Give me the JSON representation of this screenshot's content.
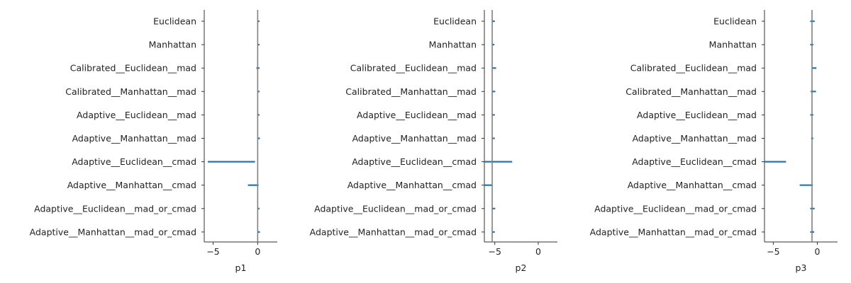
{
  "chart_data": [
    {
      "type": "interval",
      "xlabel": "p1",
      "xlim": [
        -6,
        2.2
      ],
      "xticks": [
        -5,
        0
      ],
      "reference_line": 0.0,
      "bar_color": "#1f77b4",
      "reference_color": "#808080",
      "categories": [
        "Euclidean",
        "Manhattan",
        "Calibrated__Euclidean__mad",
        "Calibrated__Manhattan__mad",
        "Adaptive__Euclidean__mad",
        "Adaptive__Manhattan__mad",
        "Adaptive__Euclidean__cmad",
        "Adaptive__Manhattan__cmad",
        "Adaptive__Euclidean__mad_or_cmad",
        "Adaptive__Manhattan__mad_or_cmad"
      ],
      "intervals": [
        [
          0.0,
          0.2
        ],
        [
          0.0,
          0.2
        ],
        [
          -0.15,
          0.2
        ],
        [
          0.0,
          0.2
        ],
        [
          0.0,
          0.2
        ],
        [
          0.0,
          0.25
        ],
        [
          -5.6,
          -0.3
        ],
        [
          -1.1,
          0.1
        ],
        [
          0.0,
          0.2
        ],
        [
          0.0,
          0.25
        ]
      ]
    },
    {
      "type": "interval",
      "xlabel": "p2",
      "xlim": [
        -6.2,
        2.2
      ],
      "xticks": [
        -5,
        0
      ],
      "reference_line": -5.3,
      "bar_color": "#1f77b4",
      "reference_color": "#808080",
      "categories": [
        "Euclidean",
        "Manhattan",
        "Calibrated__Euclidean__mad",
        "Calibrated__Manhattan__mad",
        "Adaptive__Euclidean__mad",
        "Adaptive__Manhattan__mad",
        "Adaptive__Euclidean__cmad",
        "Adaptive__Manhattan__cmad",
        "Adaptive__Euclidean__mad_or_cmad",
        "Adaptive__Manhattan__mad_or_cmad"
      ],
      "intervals": [
        [
          -5.3,
          -5.0
        ],
        [
          -5.3,
          -5.05
        ],
        [
          -5.3,
          -4.85
        ],
        [
          -5.3,
          -4.95
        ],
        [
          -5.3,
          -5.0
        ],
        [
          -5.3,
          -5.0
        ],
        [
          -6.2,
          -3.0
        ],
        [
          -6.2,
          -5.3
        ],
        [
          -5.3,
          -4.95
        ],
        [
          -5.3,
          -5.0
        ]
      ]
    },
    {
      "type": "interval",
      "xlabel": "p3",
      "xlim": [
        -6.0,
        2.3
      ],
      "xticks": [
        -5,
        0
      ],
      "reference_line": -0.6,
      "bar_color": "#1f77b4",
      "reference_color": "#808080",
      "categories": [
        "Euclidean",
        "Manhattan",
        "Calibrated__Euclidean__mad",
        "Calibrated__Manhattan__mad",
        "Adaptive__Euclidean__mad",
        "Adaptive__Manhattan__mad",
        "Adaptive__Euclidean__cmad",
        "Adaptive__Manhattan__cmad",
        "Adaptive__Euclidean__mad_or_cmad",
        "Adaptive__Manhattan__mad_or_cmad"
      ],
      "intervals": [
        [
          -0.8,
          -0.3
        ],
        [
          -0.8,
          -0.45
        ],
        [
          -0.6,
          -0.1
        ],
        [
          -0.75,
          -0.15
        ],
        [
          -0.8,
          -0.45
        ],
        [
          -0.7,
          -0.45
        ],
        [
          -6.0,
          -3.55
        ],
        [
          -2.0,
          -0.5
        ],
        [
          -0.8,
          -0.3
        ],
        [
          -0.8,
          -0.35
        ]
      ]
    }
  ]
}
